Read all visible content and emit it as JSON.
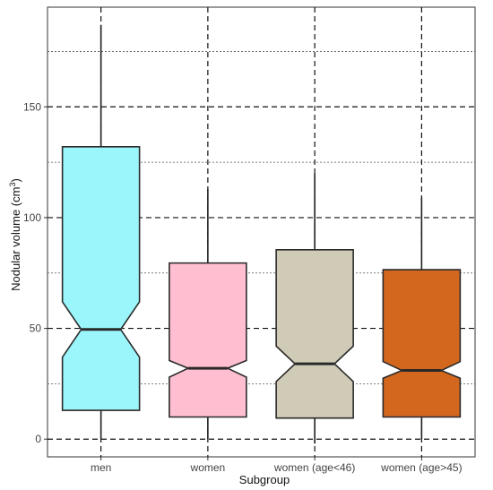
{
  "chart_data": {
    "type": "boxplot",
    "notched": true,
    "xlabel": "Subgroup",
    "ylabel": "Nodular volume (cm",
    "ylabel_sup": "3",
    "ylabel_close": ")",
    "ylim": [
      -8,
      195
    ],
    "yticks": [
      0,
      50,
      100,
      150
    ],
    "minor_gridlines": [
      25,
      75,
      125,
      175
    ],
    "grid": true,
    "categories": [
      "men",
      "women",
      "women (age<46)",
      "women (age>45)"
    ],
    "series": [
      {
        "category": "men",
        "color": "#9AF6FB",
        "whisker_low": 0,
        "q1": 13,
        "notch_low": 37,
        "median": 49.5,
        "notch_high": 62,
        "q3": 132,
        "whisker_high": 187
      },
      {
        "category": "women",
        "color": "#FFBFD0",
        "whisker_low": 0,
        "q1": 10,
        "notch_low": 28,
        "median": 32,
        "notch_high": 35.5,
        "q3": 79.5,
        "whisker_high": 113
      },
      {
        "category": "women (age<46)",
        "color": "#D0CBB6",
        "whisker_low": -2,
        "q1": 9.5,
        "notch_low": 26,
        "median": 34,
        "notch_high": 42,
        "q3": 85.5,
        "whisker_high": 120
      },
      {
        "category": "women (age>45)",
        "color": "#D3671E",
        "whisker_low": 0,
        "q1": 10,
        "notch_low": 27.5,
        "median": 31,
        "notch_high": 35,
        "q3": 76.5,
        "whisker_high": 109
      }
    ]
  }
}
